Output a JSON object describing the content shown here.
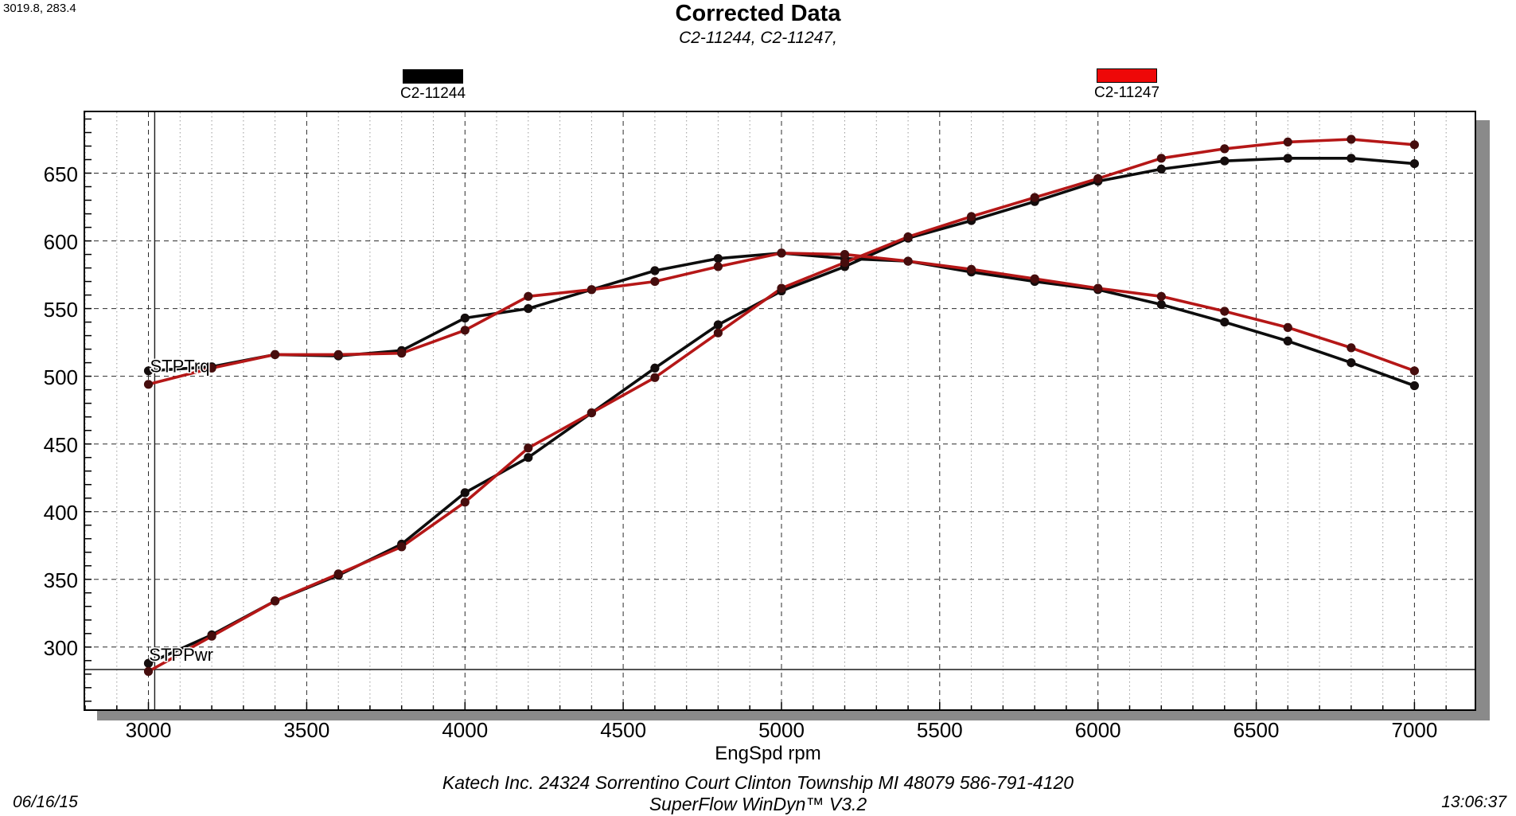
{
  "cursor_readout": "3019.8, 283.4",
  "title": "Corrected Data",
  "subtitle": "C2-11244, C2-11247,",
  "legend": [
    {
      "label": "C2-11244",
      "color": "#000000"
    },
    {
      "label": "C2-11247",
      "color": "#ee0808"
    }
  ],
  "curve_labels": {
    "torque": "STPTrq",
    "power": "STPPwr"
  },
  "xaxis_title": "EngSpd rpm",
  "footer": {
    "date": "06/16/15",
    "address": "Katech Inc. 24324 Sorrentino Court Clinton Township MI 48079 586-791-4120",
    "software": "SuperFlow WinDyn™ V3.2",
    "time": "13:06:37"
  },
  "chart_data": {
    "type": "line",
    "title": "Corrected Data",
    "xlabel": "EngSpd rpm",
    "ylabel": "STPTrq / STPPwr",
    "x_range": [
      2800,
      7190
    ],
    "y_range": [
      254,
      695
    ],
    "x_ticks": [
      3000,
      3500,
      4000,
      4500,
      5000,
      5500,
      6000,
      6500,
      7000
    ],
    "y_ticks": [
      300,
      350,
      400,
      450,
      500,
      550,
      600,
      650
    ],
    "x_minor_step": 100,
    "y_minor_step": 10,
    "grid": "major dashed both axes, minor dotted vertical, minor y as axis ticks",
    "legend_position": "top",
    "cursor": {
      "x": 3019.8,
      "y": 283.4
    },
    "x": [
      3000,
      3200,
      3400,
      3600,
      3800,
      4000,
      4200,
      4400,
      4600,
      4800,
      5000,
      5200,
      5400,
      5600,
      5800,
      6000,
      6200,
      6400,
      6600,
      6800,
      7000
    ],
    "series": [
      {
        "name": "C2-11244 STPTrq",
        "color": "#0d0d0d",
        "marker": "#140d0d",
        "values": [
          504,
          507,
          516,
          515,
          519,
          543,
          550,
          564,
          578,
          587,
          591,
          587,
          585,
          577,
          570,
          564,
          553,
          540,
          526,
          510,
          493
        ]
      },
      {
        "name": "C2-11247 STPTrq",
        "color": "#b51717",
        "marker": "#460d0d",
        "values": [
          494,
          506,
          516,
          516,
          517,
          534,
          559,
          564,
          570,
          581,
          591,
          590,
          585,
          579,
          572,
          565,
          559,
          548,
          536,
          521,
          504
        ]
      },
      {
        "name": "C2-11244 STPPwr",
        "color": "#0d0d0d",
        "marker": "#140d0d",
        "values": [
          288,
          309,
          334,
          353,
          376,
          414,
          440,
          473,
          506,
          538,
          563,
          581,
          602,
          615,
          629,
          644,
          653,
          659,
          661,
          661,
          657
        ]
      },
      {
        "name": "C2-11247 STPPwr",
        "color": "#b51717",
        "marker": "#460d0d",
        "values": [
          282,
          308,
          334,
          354,
          374,
          407,
          447,
          473,
          499,
          532,
          565,
          584,
          603,
          618,
          632,
          646,
          661,
          668,
          673,
          675,
          671
        ]
      }
    ]
  }
}
